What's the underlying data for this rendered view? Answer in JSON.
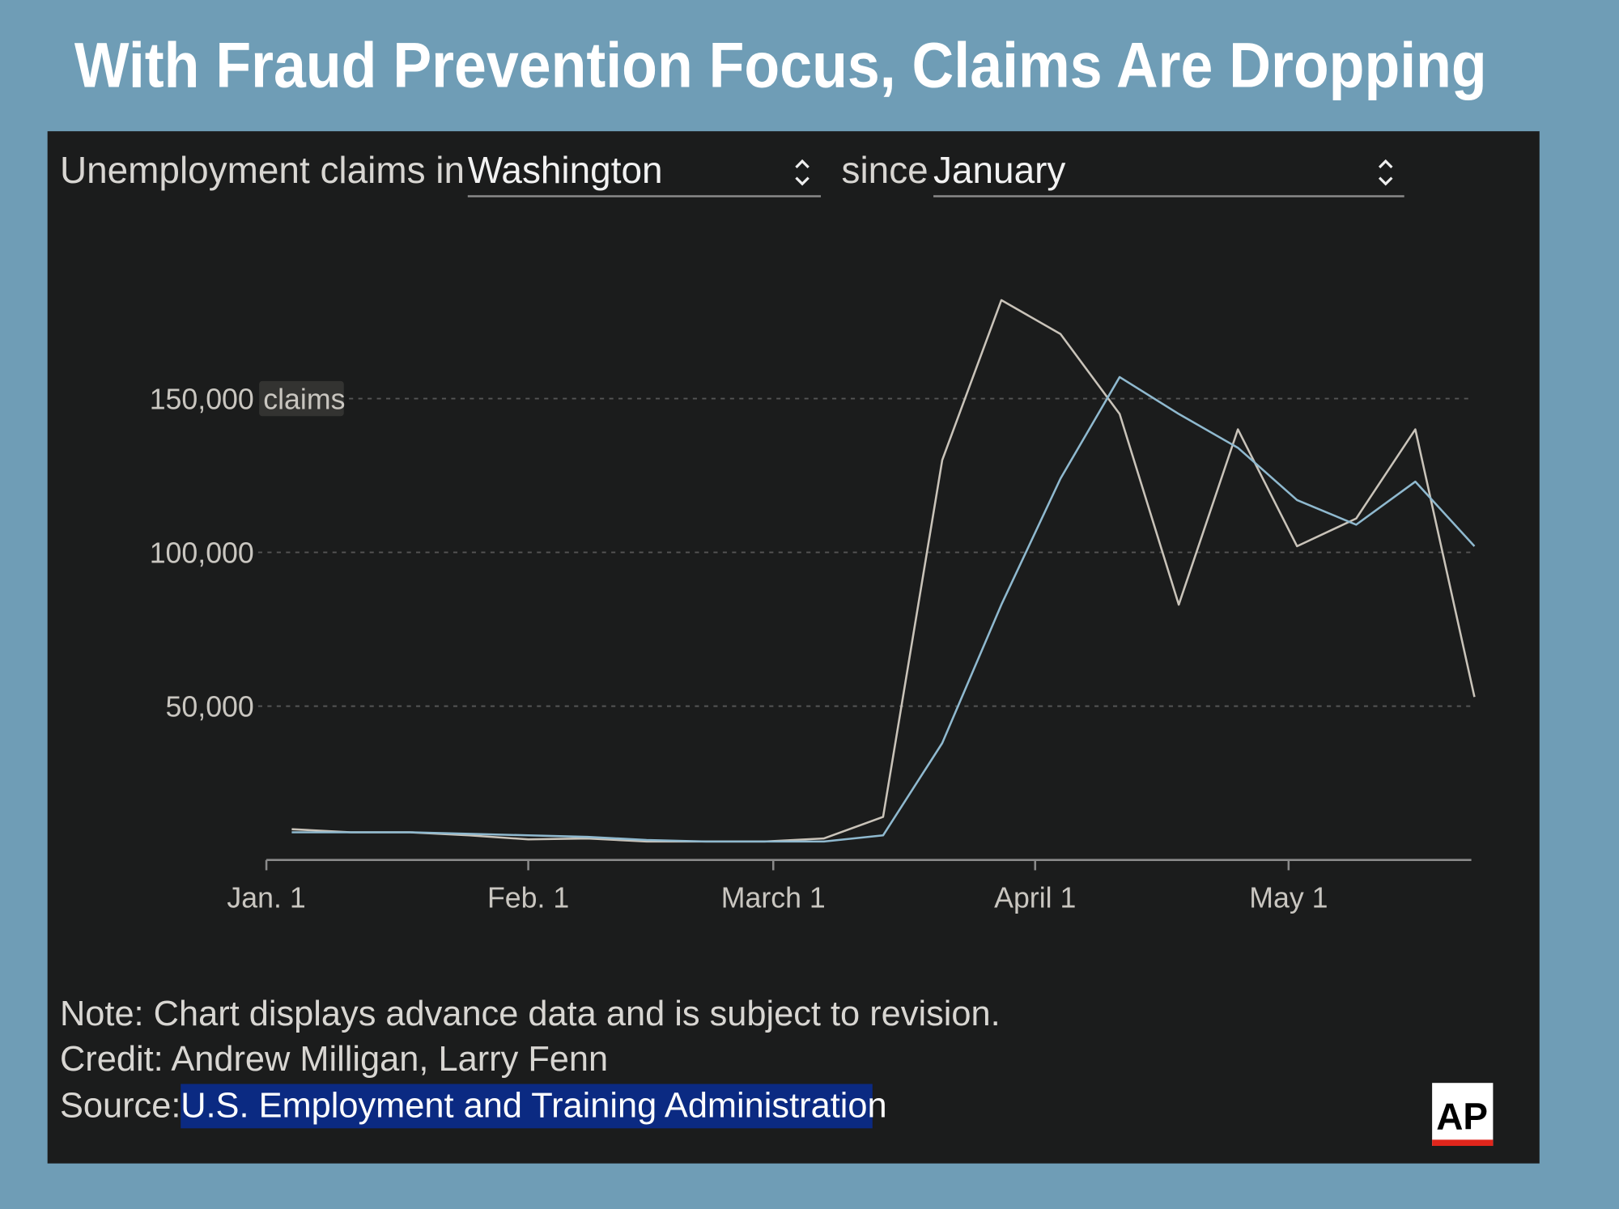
{
  "title": "With Fraud Prevention Focus, Claims Are Dropping",
  "controls": {
    "prefix": "Unemployment claims in",
    "state": "Washington",
    "since": "since",
    "period": "January"
  },
  "chart_data": {
    "type": "line",
    "x": [
      3,
      10,
      17,
      24,
      31,
      38,
      45,
      52,
      59,
      66,
      73,
      80,
      87,
      94,
      101,
      108,
      115,
      122,
      129,
      136,
      143
    ],
    "xlim": [
      0,
      143
    ],
    "xticks": [
      {
        "value": 0,
        "label": "Jan. 1"
      },
      {
        "value": 31,
        "label": "Feb. 1"
      },
      {
        "value": 60,
        "label": "March 1"
      },
      {
        "value": 91,
        "label": "April 1"
      },
      {
        "value": 121,
        "label": "May 1"
      }
    ],
    "ylim": [
      0,
      200000
    ],
    "yticks": [
      {
        "value": 50000,
        "label": "50,000"
      },
      {
        "value": 100000,
        "label": "100,000"
      },
      {
        "value": 150000,
        "label": "150,000"
      }
    ],
    "y_unit": "claims",
    "grid": true,
    "series": [
      {
        "color": "#c9c3b9",
        "values": [
          10000,
          9000,
          9000,
          8000,
          6700,
          7000,
          6000,
          6000,
          6000,
          7000,
          14000,
          130000,
          182000,
          171000,
          145000,
          83000,
          140000,
          102000,
          111000,
          140000,
          53000
        ]
      },
      {
        "color": "#8fb9cf",
        "values": [
          9000,
          9000,
          9000,
          8500,
          8000,
          7500,
          6500,
          6000,
          6000,
          6000,
          8000,
          38000,
          83000,
          124000,
          157000,
          145000,
          134000,
          117000,
          109000,
          123000,
          102000
        ]
      }
    ]
  },
  "footer": {
    "note": "Note: Chart displays advance data and is subject to revision.",
    "credit": "Credit: Andrew Milligan, Larry Fenn",
    "source_label": "Source:",
    "source": "U.S. Employment and Training Administration"
  },
  "logo": "AP"
}
